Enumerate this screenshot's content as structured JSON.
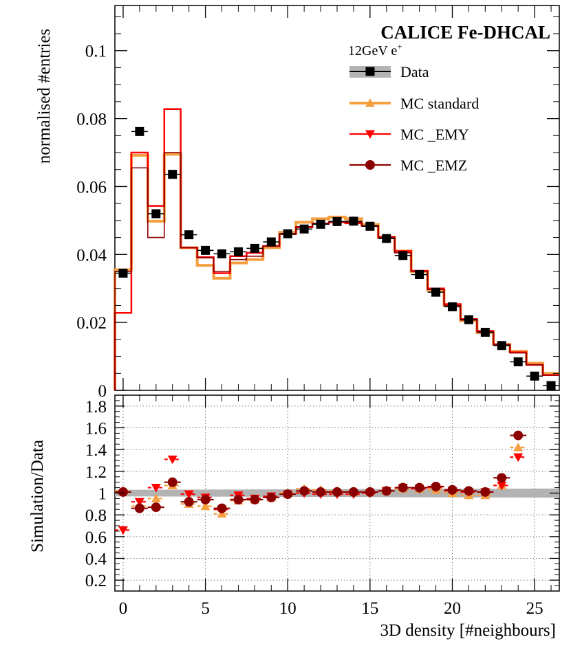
{
  "chart_data": [
    {
      "type": "line",
      "panel": "main",
      "title": "CALICE Fe-DHCAL",
      "subtitle": "12GeV e",
      "subtitle_sup": "+",
      "xlabel": "3D density [#neighbours]",
      "ylabel": "normalised #entries",
      "xlim": [
        -0.5,
        26.5
      ],
      "ylim": [
        0,
        0.1133
      ],
      "yticks": [
        0,
        0.02,
        0.04,
        0.06,
        0.08,
        0.1
      ],
      "ytick_labels": [
        "0",
        "0.02",
        "0.04",
        "0.06",
        "0.08",
        "0.1"
      ],
      "legend_position": "top-right",
      "legend": [
        {
          "label": "Data",
          "style": "marker-square-band",
          "color": "#000000"
        },
        {
          "label": "MC standard",
          "style": "marker-triangle-up",
          "color": "#f4a040"
        },
        {
          "label": "MC _EMY",
          "style": "marker-triangle-down",
          "color": "#ff0000"
        },
        {
          "label": "MC _EMZ",
          "style": "marker-circle",
          "color": "#8b0000"
        }
      ],
      "x": [
        0,
        1,
        2,
        3,
        4,
        5,
        6,
        7,
        8,
        9,
        10,
        11,
        12,
        13,
        14,
        15,
        16,
        17,
        18,
        19,
        20,
        21,
        22,
        23,
        24,
        25,
        26
      ],
      "series": [
        {
          "name": "Data",
          "color": "#000000",
          "values": [
            0.0345,
            0.0762,
            0.052,
            0.0636,
            0.0458,
            0.0412,
            0.0402,
            0.0408,
            0.0418,
            0.0437,
            0.0461,
            0.0475,
            0.0489,
            0.0497,
            0.0498,
            0.0483,
            0.0447,
            0.0397,
            0.0341,
            0.0289,
            0.0246,
            0.0208,
            0.0171,
            0.0132,
            0.0084,
            0.0042,
            0.0014
          ]
        },
        {
          "name": "MC standard",
          "color": "#f4a040",
          "values": [
            0.0355,
            0.0692,
            0.0498,
            0.0695,
            0.042,
            0.0368,
            0.033,
            0.0375,
            0.0385,
            0.042,
            0.0465,
            0.0495,
            0.0505,
            0.051,
            0.0505,
            0.0488,
            0.045,
            0.041,
            0.035,
            0.0295,
            0.025,
            0.0205,
            0.017,
            0.0135,
            0.0115,
            0.008,
            0.005
          ]
        },
        {
          "name": "MC _EMY",
          "color": "#ff0000",
          "values": [
            0.0228,
            0.07,
            0.0543,
            0.0828,
            0.042,
            0.0392,
            0.0345,
            0.0395,
            0.0405,
            0.0425,
            0.046,
            0.048,
            0.049,
            0.0495,
            0.0492,
            0.0484,
            0.0452,
            0.041,
            0.0352,
            0.03,
            0.0254,
            0.021,
            0.0175,
            0.0135,
            0.0112,
            0.0075,
            0.0045
          ]
        },
        {
          "name": "MC _EMZ",
          "color": "#8b0000",
          "values": [
            0.035,
            0.0655,
            0.045,
            0.07,
            0.042,
            0.039,
            0.035,
            0.0385,
            0.0395,
            0.0425,
            0.046,
            0.0482,
            0.0492,
            0.0497,
            0.0495,
            0.0485,
            0.045,
            0.0405,
            0.035,
            0.0297,
            0.025,
            0.0207,
            0.0172,
            0.0135,
            0.011,
            0.0075,
            0.0045
          ]
        }
      ]
    },
    {
      "type": "scatter",
      "panel": "ratio",
      "ylabel": "Simulation/Data",
      "xlabel": "3D density [#neighbours]",
      "xlim": [
        -0.5,
        26.5
      ],
      "ylim": [
        0.1,
        1.9
      ],
      "grid": true,
      "yticks": [
        0.2,
        0.4,
        0.6,
        0.8,
        1,
        1.2,
        1.4,
        1.6,
        1.8
      ],
      "ytick_labels": [
        "0.2",
        "0.4",
        "0.6",
        "0.8",
        "1",
        "1.2",
        "1.4",
        "1.6",
        "1.8"
      ],
      "xticks": [
        0,
        5,
        10,
        15,
        20,
        25
      ],
      "xtick_labels": [
        "0",
        "5",
        "10",
        "15",
        "20",
        "25"
      ],
      "band": {
        "name": "Data uncertainty",
        "color": "#b3b3b3",
        "lower": 0.97,
        "upper": 1.03
      },
      "x": [
        0,
        1,
        2,
        3,
        4,
        5,
        6,
        7,
        8,
        9,
        10,
        11,
        12,
        13,
        14,
        15,
        16,
        17,
        18,
        19,
        20,
        21,
        22,
        23,
        24
      ],
      "series": [
        {
          "name": "MC standard",
          "color": "#f4a040",
          "values": [
            1.02,
            0.88,
            0.95,
            1.07,
            0.9,
            0.88,
            0.81,
            0.93,
            0.94,
            0.96,
            1.0,
            1.04,
            1.03,
            1.02,
            1.01,
            1.01,
            1.02,
            1.04,
            1.04,
            1.03,
            1.0,
            0.98,
            0.98,
            1.07,
            1.42
          ]
        },
        {
          "name": "MC _EMY",
          "color": "#ff0000",
          "values": [
            0.66,
            0.92,
            1.05,
            1.31,
            0.99,
            0.96,
            0.85,
            0.98,
            0.95,
            0.97,
            0.99,
            1.0,
            0.99,
            0.99,
            0.99,
            1.0,
            1.02,
            1.05,
            1.04,
            1.05,
            1.02,
            1.01,
            1.01,
            1.07,
            1.33
          ]
        },
        {
          "name": "MC _EMZ",
          "color": "#8b0000",
          "values": [
            1.01,
            0.86,
            0.87,
            1.1,
            0.92,
            0.94,
            0.86,
            0.94,
            0.94,
            0.96,
            0.99,
            1.02,
            1.01,
            1.01,
            1.01,
            1.01,
            1.02,
            1.05,
            1.05,
            1.06,
            1.03,
            1.02,
            1.01,
            1.14,
            1.53
          ]
        }
      ]
    }
  ]
}
